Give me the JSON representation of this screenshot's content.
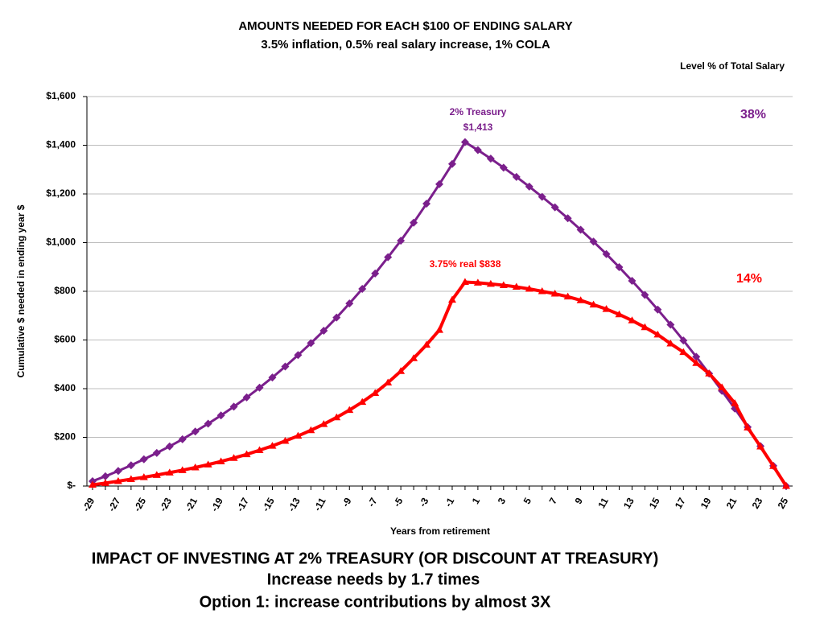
{
  "chart_data": {
    "type": "line",
    "title": "AMOUNTS NEEDED FOR EACH $100 OF ENDING SALARY",
    "subtitle": "3.5% inflation, 0.5% real salary increase, 1% COLA",
    "legend_title": "Level % of Total Salary",
    "y_label": "Cumulative $ needed in ending year $",
    "x_label": "Years from retirement",
    "categories": [
      "-29",
      null,
      "-27",
      null,
      "-25",
      null,
      "-23",
      null,
      "-21",
      null,
      "-19",
      null,
      "-17",
      null,
      "-15",
      null,
      "-13",
      null,
      "-11",
      null,
      "-9",
      null,
      "-7",
      null,
      "-5",
      null,
      "-3",
      null,
      "-1",
      null,
      "1",
      null,
      "3",
      null,
      "5",
      null,
      "7",
      null,
      "9",
      null,
      "11",
      null,
      "13",
      null,
      "15",
      null,
      "17",
      null,
      "19",
      null,
      "21",
      null,
      "23",
      null,
      "25"
    ],
    "series": [
      {
        "name": "2% Treasury",
        "color": "#7b1f8c",
        "marker": "diamond",
        "peak_label": "$1,413",
        "share_label": "38%",
        "values": [
          20,
          40,
          62,
          85,
          110,
          136,
          163,
          192,
          224,
          256,
          290,
          326,
          364,
          404,
          446,
          491,
          538,
          587,
          638,
          692,
          750,
          810,
          873,
          940,
          1008,
          1082,
          1160,
          1240,
          1323,
          1413,
          1380,
          1345,
          1308,
          1270,
          1230,
          1188,
          1145,
          1100,
          1053,
          1004,
          953,
          899,
          843,
          785,
          725,
          663,
          598,
          531,
          462,
          391,
          318,
          242,
          164,
          83,
          0
        ]
      },
      {
        "name": "3.75% real  $838",
        "color": "#ff0000",
        "marker": "triangle",
        "share_label": "14%",
        "values": [
          5,
          12,
          20,
          28,
          36,
          45,
          55,
          65,
          76,
          88,
          101,
          115,
          130,
          147,
          165,
          185,
          206,
          229,
          254,
          282,
          312,
          345,
          382,
          425,
          472,
          525,
          580,
          641,
          765,
          838,
          835,
          830,
          825,
          818,
          810,
          800,
          790,
          778,
          763,
          745,
          727,
          705,
          680,
          652,
          622,
          585,
          550,
          505,
          462,
          405,
          340,
          240,
          162,
          82,
          0
        ]
      }
    ],
    "ylim": [
      0,
      1600
    ],
    "yticks": [
      {
        "value": 0,
        "label": "$-"
      },
      {
        "value": 200,
        "label": "$200"
      },
      {
        "value": 400,
        "label": "$400"
      },
      {
        "value": 600,
        "label": "$600"
      },
      {
        "value": 800,
        "label": "$800"
      },
      {
        "value": 1000,
        "label": "$1,000"
      },
      {
        "value": 1200,
        "label": "$1,200"
      },
      {
        "value": 1400,
        "label": "$1,400"
      },
      {
        "value": 1600,
        "label": "$1,600"
      }
    ],
    "grid": true,
    "notes": [
      "IMPACT OF INVESTING AT 2% TREASURY (OR DISCOUNT AT TREASURY)",
      "Increase needs by 1.7 times",
      "Option 1: increase contributions by almost 3X"
    ]
  }
}
